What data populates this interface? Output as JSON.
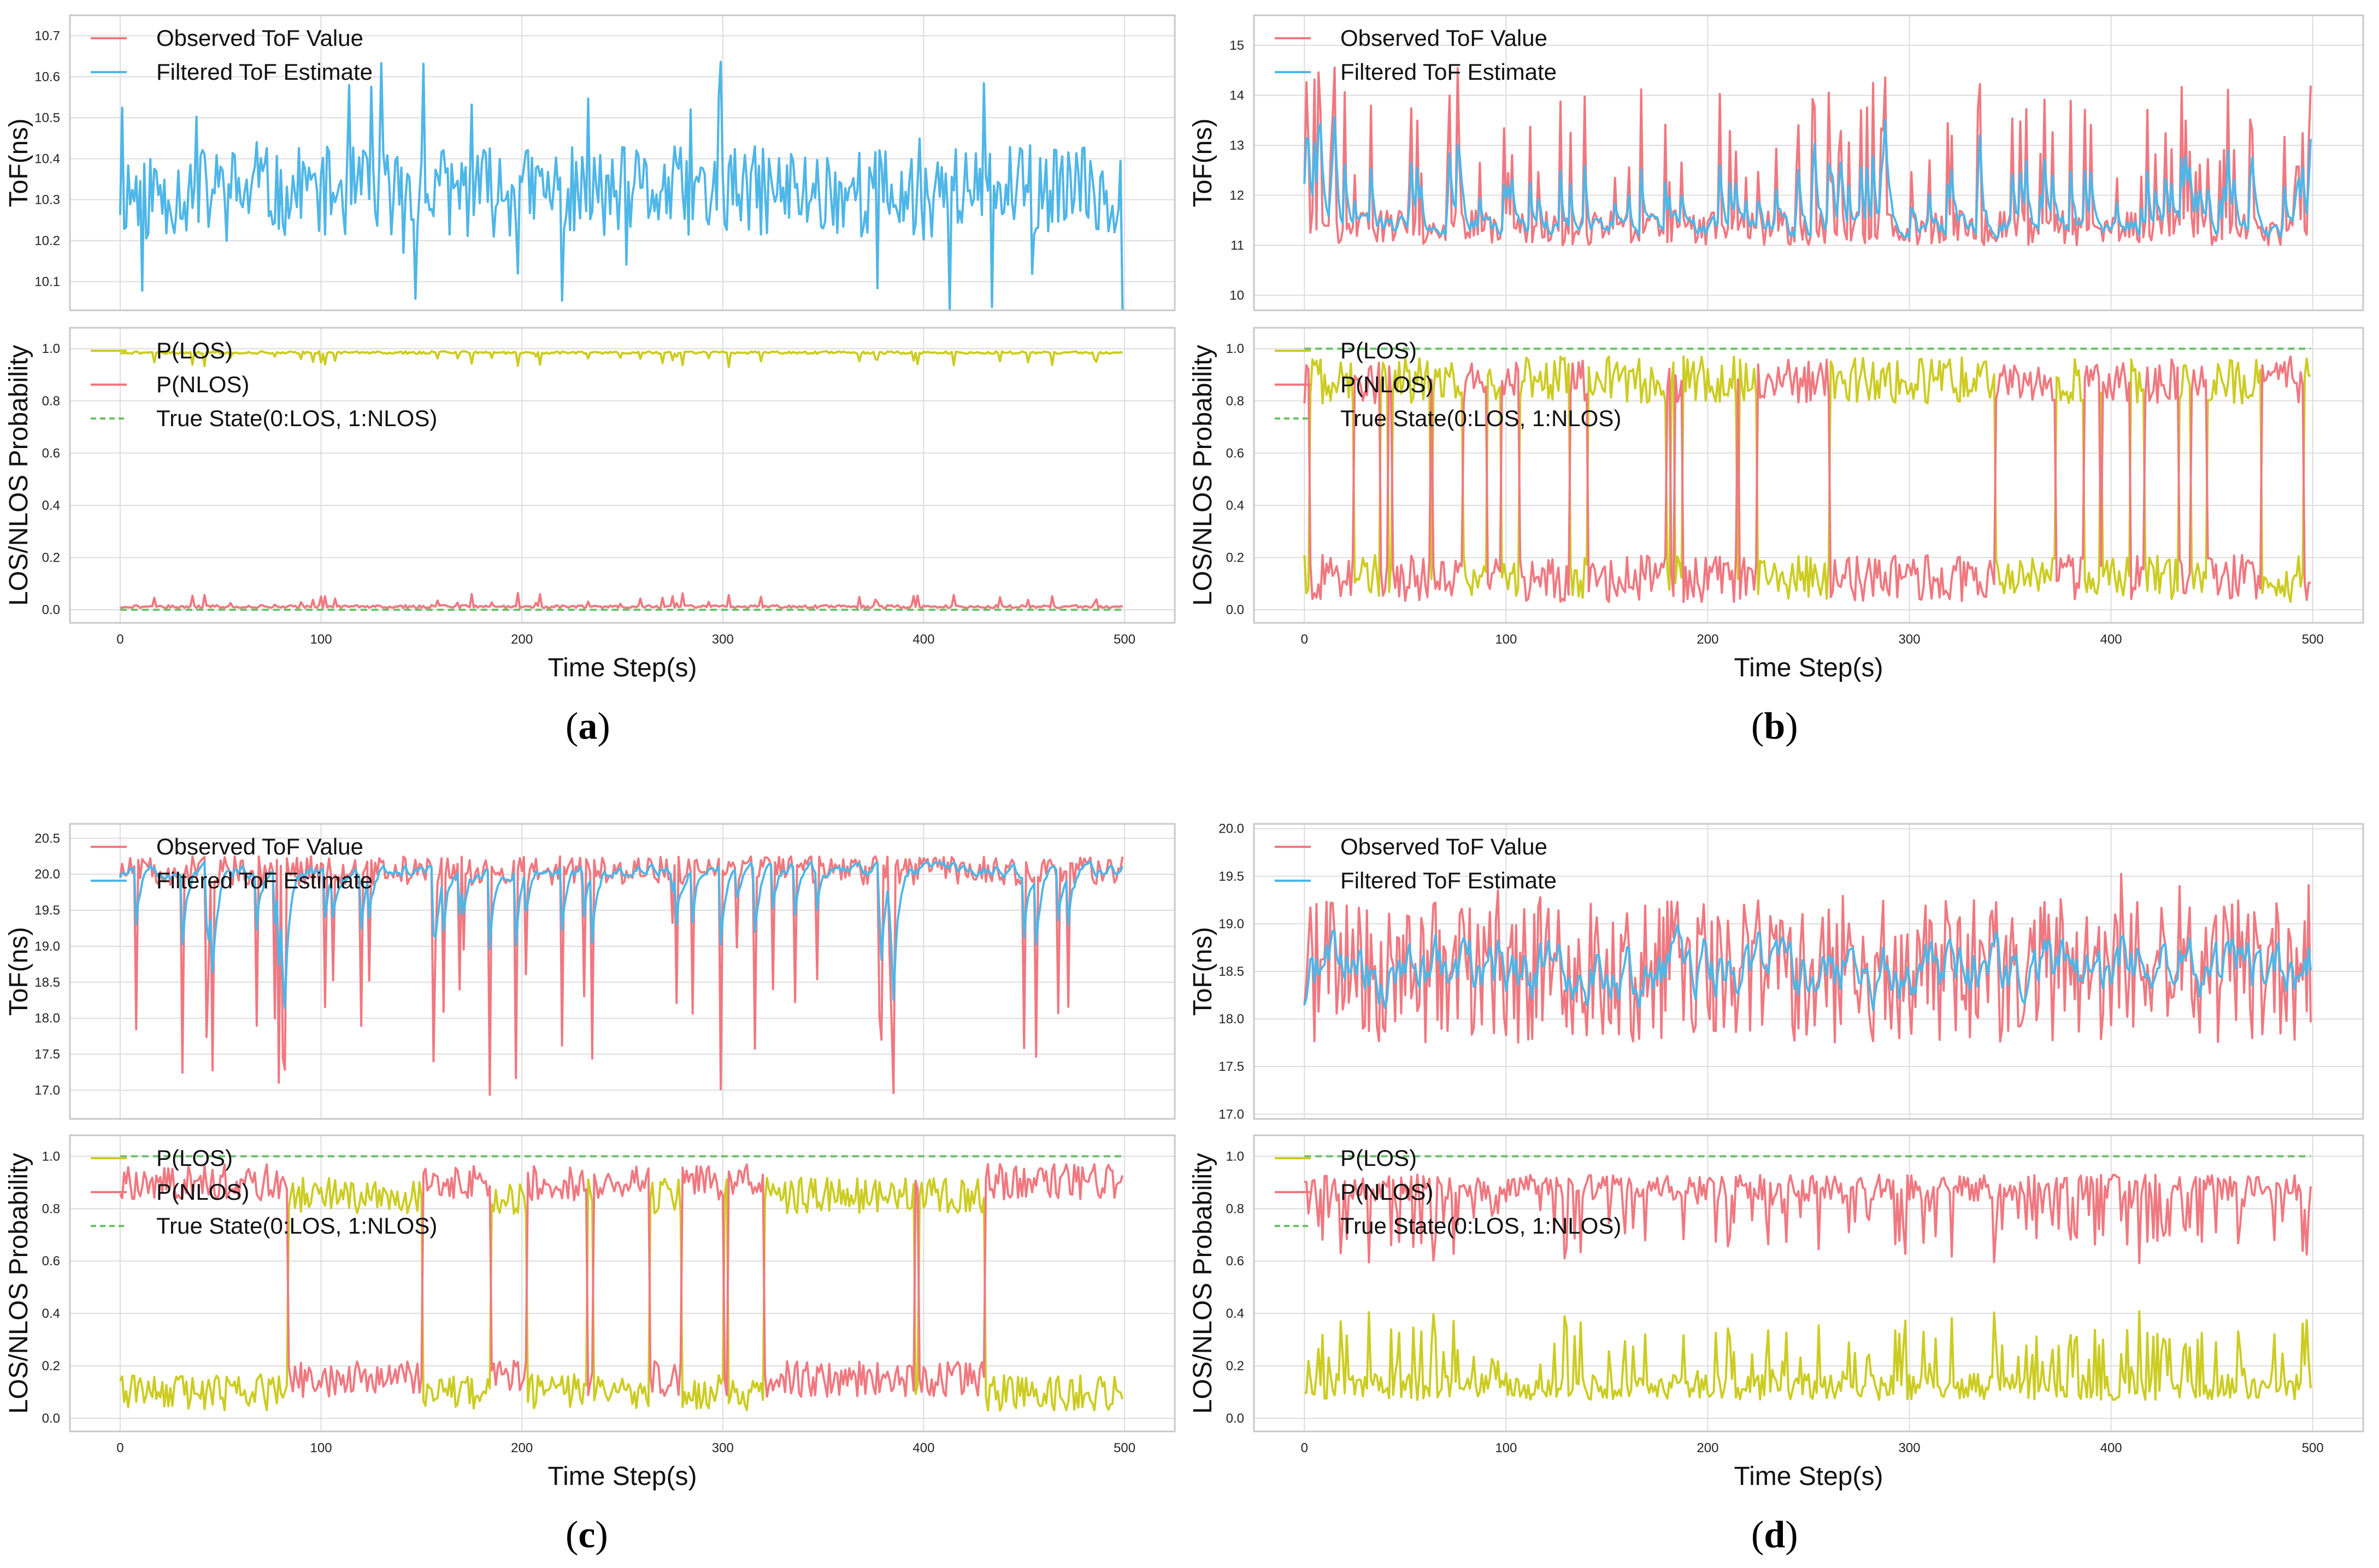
{
  "figure": {
    "panel_labels": [
      "a",
      "b",
      "c",
      "d"
    ],
    "colors": {
      "observed": "#f07880",
      "filtered": "#4ab8ea",
      "plos": "#cccc22",
      "pnlos": "#f07880",
      "true_state": "#6cc06c",
      "grid": "#dddddd",
      "frame": "#c8c8c8"
    }
  },
  "chart_data": [
    {
      "panel": "a",
      "type": "line",
      "subplot": "top",
      "title": "",
      "xlabel": "",
      "ylabel": "ToF(ns)",
      "xlim": [
        -25,
        525
      ],
      "ylim": [
        10.03,
        10.75
      ],
      "xticks": [
        0,
        100,
        200,
        300,
        400,
        500
      ],
      "yticks": [
        10.1,
        10.2,
        10.3,
        10.4,
        10.5,
        10.6,
        10.7
      ],
      "ytick_labels": [
        "10.1",
        "10.2",
        "10.3",
        "10.4",
        "10.5",
        "10.6",
        "10.7"
      ],
      "legend": [
        "Observed ToF Value",
        "Filtered ToF Estimate"
      ],
      "series": [
        {
          "name": "Observed ToF Value",
          "gen": {
            "kind": "noise",
            "base": 10.32,
            "amp": 0.11,
            "spike": 0.28,
            "rate": 0.09,
            "seed": 11
          }
        },
        {
          "name": "Filtered ToF Estimate",
          "gen": {
            "kind": "noise",
            "base": 10.32,
            "amp": 0.11,
            "spike": 0.28,
            "rate": 0.09,
            "seed": 11
          }
        }
      ]
    },
    {
      "panel": "a",
      "type": "line",
      "subplot": "bottom",
      "title": "",
      "xlabel": "Time Step(s)",
      "ylabel": "LOS/NLOS Probability",
      "xlim": [
        -25,
        525
      ],
      "ylim": [
        -0.05,
        1.08
      ],
      "xticks": [
        0,
        100,
        200,
        300,
        400,
        500
      ],
      "yticks": [
        0.0,
        0.2,
        0.4,
        0.6,
        0.8,
        1.0
      ],
      "ytick_labels": [
        "0.0",
        "0.2",
        "0.4",
        "0.6",
        "0.8",
        "1.0"
      ],
      "legend": [
        "P(LOS)",
        "P(NLOS)",
        "True State(0:LOS, 1:NLOS)"
      ],
      "series": [
        {
          "name": "P(LOS)",
          "gen": {
            "kind": "high",
            "base": 0.985,
            "dip": 0.04,
            "rate": 0.08,
            "seed": 21
          }
        },
        {
          "name": "P(NLOS)",
          "gen": {
            "kind": "low",
            "base": 0.012,
            "dip": 0.04,
            "rate": 0.08,
            "seed": 21
          }
        },
        {
          "name": "True State(0:LOS, 1:NLOS)",
          "constant": 0
        }
      ]
    },
    {
      "panel": "b",
      "type": "line",
      "subplot": "top",
      "title": "",
      "xlabel": "",
      "ylabel": "ToF(ns)",
      "xlim": [
        -25,
        525
      ],
      "ylim": [
        9.7,
        15.6
      ],
      "xticks": [
        0,
        100,
        200,
        300,
        400,
        500
      ],
      "yticks": [
        10,
        11,
        12,
        13,
        14,
        15
      ],
      "ytick_labels": [
        "10",
        "11",
        "12",
        "13",
        "14",
        "15"
      ],
      "legend": [
        "Observed ToF Value",
        "Filtered ToF Estimate"
      ],
      "series": [
        {
          "name": "Observed ToF Value",
          "gen": {
            "kind": "bursty",
            "base": 11.0,
            "amp": 0.7,
            "burst": 2.4,
            "rate": 0.18,
            "seed": 31
          }
        },
        {
          "name": "Filtered ToF Estimate",
          "gen": {
            "kind": "smooth",
            "of": 0,
            "alpha": 0.45
          }
        }
      ]
    },
    {
      "panel": "b",
      "type": "line",
      "subplot": "bottom",
      "title": "",
      "xlabel": "Time Step(s)",
      "ylabel": "LOS/NLOS Probability",
      "xlim": [
        -25,
        525
      ],
      "ylim": [
        -0.05,
        1.08
      ],
      "xticks": [
        0,
        100,
        200,
        300,
        400,
        500
      ],
      "yticks": [
        0.0,
        0.2,
        0.4,
        0.6,
        0.8,
        1.0
      ],
      "ytick_labels": [
        "0.0",
        "0.2",
        "0.4",
        "0.6",
        "0.8",
        "1.0"
      ],
      "legend": [
        "P(LOS)",
        "P(NLOS)",
        "True State(0:LOS, 1:NLOS)"
      ],
      "series": [
        {
          "name": "P(LOS)",
          "gen": {
            "kind": "switch",
            "seed": 41,
            "hi": 0.88,
            "lo": 0.12,
            "noise": 0.09,
            "switch_rate": 0.07
          }
        },
        {
          "name": "P(NLOS)",
          "gen": {
            "kind": "complement",
            "of": 0
          }
        },
        {
          "name": "True State(0:LOS, 1:NLOS)",
          "constant": 1
        }
      ]
    },
    {
      "panel": "c",
      "type": "line",
      "subplot": "top",
      "title": "",
      "xlabel": "",
      "ylabel": "ToF(ns)",
      "xlim": [
        -25,
        525
      ],
      "ylim": [
        16.6,
        20.7
      ],
      "xticks": [
        0,
        100,
        200,
        300,
        400,
        500
      ],
      "yticks": [
        17.0,
        17.5,
        18.0,
        18.5,
        19.0,
        19.5,
        20.0,
        20.5
      ],
      "ytick_labels": [
        "17.0",
        "17.5",
        "18.0",
        "18.5",
        "19.0",
        "19.5",
        "20.0",
        "20.5"
      ],
      "legend": [
        "Observed ToF Value",
        "Filtered ToF Estimate"
      ],
      "series": [
        {
          "name": "Observed ToF Value",
          "gen": {
            "kind": "dips",
            "base": 20.05,
            "amp": 0.2,
            "dip": 2.6,
            "rate": 0.1,
            "seed": 51
          }
        },
        {
          "name": "Filtered ToF Estimate",
          "gen": {
            "kind": "smooth",
            "of": 0,
            "alpha": 0.35
          }
        }
      ]
    },
    {
      "panel": "c",
      "type": "line",
      "subplot": "bottom",
      "title": "",
      "xlabel": "Time Step(s)",
      "ylabel": "LOS/NLOS Probability",
      "xlim": [
        -25,
        525
      ],
      "ylim": [
        -0.05,
        1.08
      ],
      "xticks": [
        0,
        100,
        200,
        300,
        400,
        500
      ],
      "yticks": [
        0.0,
        0.2,
        0.4,
        0.6,
        0.8,
        1.0
      ],
      "ytick_labels": [
        "0.0",
        "0.2",
        "0.4",
        "0.6",
        "0.8",
        "1.0"
      ],
      "legend": [
        "P(LOS)",
        "P(NLOS)",
        "True State(0:LOS, 1:NLOS)"
      ],
      "series": [
        {
          "name": "P(LOS)",
          "gen": {
            "kind": "switch",
            "seed": 61,
            "hi": 0.85,
            "lo": 0.1,
            "noise": 0.07,
            "switch_rate": 0.035
          }
        },
        {
          "name": "P(NLOS)",
          "gen": {
            "kind": "complement",
            "of": 0
          }
        },
        {
          "name": "True State(0:LOS, 1:NLOS)",
          "constant": 1
        }
      ]
    },
    {
      "panel": "d",
      "type": "line",
      "subplot": "top",
      "title": "",
      "xlabel": "",
      "ylabel": "ToF(ns)",
      "xlim": [
        -25,
        525
      ],
      "ylim": [
        16.95,
        20.05
      ],
      "xticks": [
        0,
        100,
        200,
        300,
        400,
        500
      ],
      "yticks": [
        17.0,
        17.5,
        18.0,
        18.5,
        19.0,
        19.5,
        20.0
      ],
      "ytick_labels": [
        "17.0",
        "17.5",
        "18.0",
        "18.5",
        "19.0",
        "19.5",
        "20.0"
      ],
      "legend": [
        "Observed ToF Value",
        "Filtered ToF Estimate"
      ],
      "series": [
        {
          "name": "Observed ToF Value",
          "gen": {
            "kind": "wide",
            "base": 18.2,
            "amp": 0.75,
            "rate": 0.0,
            "seed": 71
          }
        },
        {
          "name": "Filtered ToF Estimate",
          "gen": {
            "kind": "smooth",
            "of": 0,
            "alpha": 0.3
          }
        }
      ]
    },
    {
      "panel": "d",
      "type": "line",
      "subplot": "bottom",
      "title": "",
      "xlabel": "Time Step(s)",
      "ylabel": "LOS/NLOS Probability",
      "xlim": [
        -25,
        525
      ],
      "ylim": [
        -0.05,
        1.08
      ],
      "xticks": [
        0,
        100,
        200,
        300,
        400,
        500
      ],
      "yticks": [
        0.0,
        0.2,
        0.4,
        0.6,
        0.8,
        1.0
      ],
      "ytick_labels": [
        "0.0",
        "0.2",
        "0.4",
        "0.6",
        "0.8",
        "1.0"
      ],
      "legend": [
        "P(LOS)",
        "P(NLOS)",
        "True State(0:LOS, 1:NLOS)"
      ],
      "series": [
        {
          "name": "P(LOS)",
          "gen": {
            "kind": "low",
            "base": 0.12,
            "dip": 0.2,
            "rate": 0.25,
            "seed": 81,
            "noise": 0.05
          }
        },
        {
          "name": "P(NLOS)",
          "gen": {
            "kind": "complement",
            "of": 0
          }
        },
        {
          "name": "True State(0:LOS, 1:NLOS)",
          "constant": 1
        }
      ]
    }
  ]
}
